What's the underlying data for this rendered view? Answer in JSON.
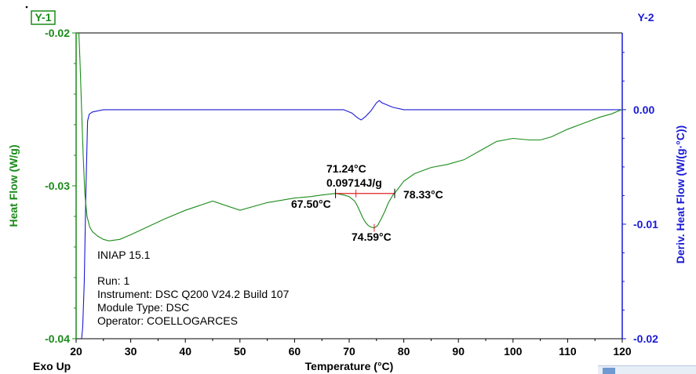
{
  "chart_data": {
    "type": "line",
    "sample_name": "INIAP 15.1",
    "info_lines": [
      "Run:  1",
      "Instrument:  DSC Q200 V24.2 Build 107",
      "Module Type:  DSC",
      "Operator:  COELLOGARCES"
    ],
    "xlabel": "Temperature (°C)",
    "xlim": [
      20,
      120
    ],
    "x_ticks": [
      20,
      30,
      40,
      50,
      60,
      70,
      80,
      90,
      100,
      110,
      120
    ],
    "exo_label": "Exo Up",
    "y1": {
      "tag": "Y-1",
      "label": "Heat Flow (W/g)",
      "ylim": [
        -0.04,
        -0.02
      ],
      "ticks": [
        "-0.02",
        "-0.03",
        "-0.04"
      ],
      "tick_values": [
        -0.02,
        -0.03,
        -0.04
      ],
      "color": "#1a8c1a"
    },
    "y2": {
      "tag": "Y-2",
      "label": "Deriv. Heat Flow (W/(g·°C))",
      "ylim": [
        -0.02,
        0.0067
      ],
      "ticks": [
        "0.00",
        "-0.01",
        "-0.02"
      ],
      "tick_values": [
        0.0,
        -0.01,
        -0.02
      ],
      "color": "#1a1ad6"
    },
    "series": [
      {
        "axis": "y1",
        "color": "#1a8c1a",
        "x": [
          20.5,
          20.7,
          21.0,
          21.3,
          21.6,
          22.0,
          22.5,
          23.0,
          24.0,
          25.0,
          26.0,
          28.0,
          30.0,
          33.0,
          36.0,
          40.0,
          45.0,
          50.0,
          55.0,
          60.0,
          63.0,
          65.0,
          67.5,
          69.0,
          70.0,
          71.0,
          71.5,
          72.0,
          72.5,
          73.0,
          73.5,
          74.0,
          74.6,
          75.2,
          75.8,
          76.5,
          77.2,
          78.0,
          78.3,
          80.0,
          82.0,
          85.0,
          88.0,
          91.0,
          94.0,
          97.0,
          100.0,
          103.0,
          105.0,
          107.0,
          110.0,
          113.0,
          116.0,
          118.0,
          120.0
        ],
        "y": [
          -0.02,
          -0.0218,
          -0.025,
          -0.028,
          -0.0305,
          -0.032,
          -0.0327,
          -0.033,
          -0.0333,
          -0.0335,
          -0.0336,
          -0.0335,
          -0.0332,
          -0.0327,
          -0.0322,
          -0.0316,
          -0.031,
          -0.0316,
          -0.0311,
          -0.0308,
          -0.0307,
          -0.0306,
          -0.0305,
          -0.0306,
          -0.0307,
          -0.031,
          -0.0313,
          -0.0317,
          -0.0321,
          -0.0324,
          -0.0326,
          -0.0327,
          -0.03275,
          -0.0326,
          -0.0322,
          -0.0317,
          -0.0311,
          -0.0306,
          -0.0305,
          -0.0297,
          -0.0292,
          -0.0288,
          -0.0286,
          -0.0283,
          -0.0277,
          -0.0271,
          -0.0269,
          -0.027,
          -0.027,
          -0.0268,
          -0.0263,
          -0.0259,
          -0.0255,
          -0.0253,
          -0.025
        ]
      },
      {
        "axis": "y2",
        "color": "#1a1ad6",
        "x": [
          21.0,
          21.2,
          21.5,
          21.8,
          22.1,
          22.4,
          23.0,
          25.0,
          30.0,
          40.0,
          50.0,
          60.0,
          66.0,
          69.0,
          70.5,
          71.5,
          72.2,
          73.0,
          74.0,
          75.0,
          75.5,
          76.0,
          78.0,
          80.0,
          85.0,
          90.0,
          100.0,
          110.0,
          120.0
        ],
        "y": [
          -0.02,
          -0.019,
          -0.015,
          -0.007,
          -0.001,
          -0.0004,
          -0.0002,
          0.0,
          0.0,
          0.0,
          0.0,
          0.0,
          0.0,
          0.0,
          -0.0003,
          -0.0007,
          -0.0009,
          -0.0006,
          -0.0001,
          0.0006,
          0.0008,
          0.0006,
          0.0002,
          0.0,
          0.0,
          0.0,
          0.0,
          0.0,
          0.0
        ]
      }
    ],
    "annotations": [
      {
        "label": "71.24°C",
        "value": 71.24
      },
      {
        "label": "0.09714J/g",
        "value": 0.09714
      },
      {
        "label": "67.50°C",
        "value": 67.5
      },
      {
        "label": "78.33°C",
        "value": 78.33
      },
      {
        "label": "74.59°C",
        "value": 74.59
      }
    ],
    "integration_baseline": {
      "x_start": 67.5,
      "x_end": 78.33,
      "y": -0.0305,
      "color": "#e02020"
    }
  }
}
